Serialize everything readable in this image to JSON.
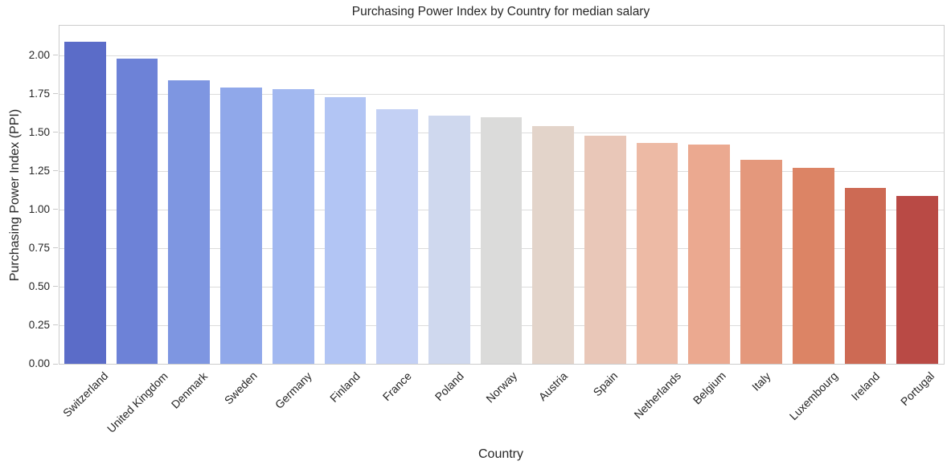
{
  "chart_data": {
    "type": "bar",
    "title": "Purchasing Power Index by Country for median salary",
    "xlabel": "Country",
    "ylabel": "Purchasing Power Index (PPI)",
    "categories": [
      "Switzerland",
      "United Kingdom",
      "Denmark",
      "Sweden",
      "Germany",
      "Finland",
      "France",
      "Poland",
      "Norway",
      "Austria",
      "Spain",
      "Netherlands",
      "Belgium",
      "Italy",
      "Luxembourg",
      "Ireland",
      "Portugal"
    ],
    "values": [
      2.09,
      1.98,
      1.84,
      1.79,
      1.78,
      1.73,
      1.65,
      1.61,
      1.6,
      1.54,
      1.48,
      1.43,
      1.42,
      1.32,
      1.27,
      1.14,
      1.09
    ],
    "bar_colors": [
      "#5b6cc8",
      "#6d82d7",
      "#7e96e1",
      "#90a8ea",
      "#a2b8f0",
      "#b2c5f4",
      "#c3d0f4",
      "#cfd8ee",
      "#dbdbda",
      "#e3d4ca",
      "#e9c7b8",
      "#edbaa5",
      "#eba990",
      "#e4987c",
      "#dc8465",
      "#cd6a54",
      "#b94a45"
    ],
    "palette": "coolwarm",
    "ylim": [
      0,
      2.19
    ],
    "yticks": [
      "0.00",
      "0.25",
      "0.50",
      "0.75",
      "1.00",
      "1.25",
      "1.50",
      "1.75",
      "2.00"
    ],
    "x_tick_rotation": 45,
    "grid": "horizontal",
    "legend": "none"
  },
  "colors": {
    "background": "#ffffff",
    "text": "#262626",
    "gridline": "#dcdcdc",
    "spine": "#cccccc"
  }
}
